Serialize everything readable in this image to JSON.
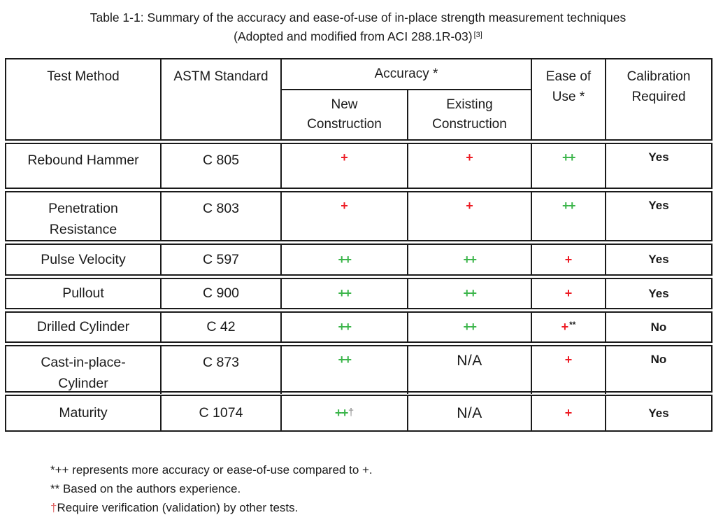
{
  "title": {
    "line1": "Table 1-1: Summary of the accuracy and ease-of-use of in-place strength measurement techniques",
    "line2": "(Adopted and modified from ACI 288.1R-03)",
    "citation": "[3]"
  },
  "table": {
    "headers": {
      "test_method": "Test Method",
      "astm_standard": "ASTM Standard",
      "accuracy": "Accuracy *",
      "accuracy_sub_new": "New\nConstruction",
      "accuracy_sub_existing": "Existing\nConstruction",
      "ease_of_use": "Ease of\nUse *",
      "calibration": "Calibration\nRequired"
    },
    "rows": [
      {
        "method": "Rebound Hammer",
        "astm": "C 805",
        "accuracy_new": "+",
        "accuracy_existing": "+",
        "ease_of_use": "++",
        "calibration": "Yes"
      },
      {
        "method": "Penetration\nResistance",
        "astm": "C 803",
        "accuracy_new": "+",
        "accuracy_existing": "+",
        "ease_of_use": "++",
        "calibration": "Yes"
      },
      {
        "method": "Pulse Velocity",
        "astm": "C 597",
        "accuracy_new": "++",
        "accuracy_existing": "++",
        "ease_of_use": "+",
        "calibration": "Yes"
      },
      {
        "method": "Pullout",
        "astm": "C 900",
        "accuracy_new": "++",
        "accuracy_existing": "++",
        "ease_of_use": "+",
        "calibration": "Yes"
      },
      {
        "method": "Drilled Cylinder",
        "astm": "C 42",
        "accuracy_new": "++",
        "accuracy_existing": "++",
        "ease_of_use": "+",
        "ease_of_use_suffix": "**",
        "calibration": "No"
      },
      {
        "method": "Cast-in-place-\nCylinder",
        "astm": "C 873",
        "accuracy_new": "++",
        "accuracy_existing": "N/A",
        "ease_of_use": "+",
        "calibration": "No"
      },
      {
        "method": "Maturity",
        "astm": "C 1074",
        "accuracy_new": "++",
        "accuracy_new_suffix": "†",
        "accuracy_existing": "N/A",
        "ease_of_use": "+",
        "calibration": "Yes"
      }
    ]
  },
  "footnotes": [
    {
      "marker": "",
      "text": "*++ represents more accuracy or ease-of-use compared to +."
    },
    {
      "marker": "",
      "text": "** Based on the authors experience."
    },
    {
      "marker": "†",
      "text": "Require verification (validation) by other tests."
    }
  ],
  "colors": {
    "plus_red": "#ed1c24",
    "plus_plus_green": "#3bb54a",
    "in_table_dagger_gray": "#8a8a8a",
    "footnote_dagger_red": "#e06666",
    "text": "#1a1a1a",
    "border": "#1a1a1a",
    "background": "#ffffff"
  }
}
